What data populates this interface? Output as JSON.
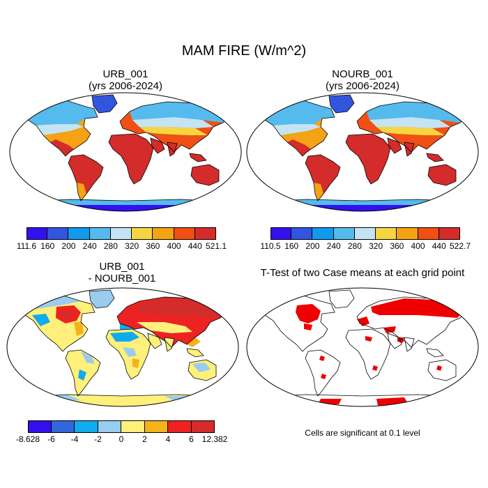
{
  "main_title": "MAM FIRE (W/m^2)",
  "panels": {
    "urb": {
      "title_line1": "URB_001",
      "title_line2": "(yrs 2006-2024)"
    },
    "nourb": {
      "title_line1": "NOURB_001",
      "title_line2": "(yrs 2006-2024)"
    },
    "diff": {
      "title_line1": "URB_001",
      "title_line2": "- NOURB_001"
    },
    "ttest": {
      "title": "T-Test of two Case means at each grid point",
      "note": "Cells are significant at 0.1 level",
      "significant_color": "#ee0000"
    }
  },
  "colorbars": {
    "urb": {
      "labels": [
        "111.6",
        "160",
        "200",
        "240",
        "280",
        "320",
        "360",
        "400",
        "440",
        "521.1"
      ],
      "colors": [
        "#3311ee",
        "#3355dd",
        "#1199ee",
        "#55bbee",
        "#c4e4f4",
        "#f5d642",
        "#f5a214",
        "#f05014",
        "#d42b2b"
      ]
    },
    "nourb": {
      "labels": [
        "110.5",
        "160",
        "200",
        "240",
        "280",
        "320",
        "360",
        "400",
        "440",
        "522.7"
      ],
      "colors": [
        "#3311ee",
        "#3355dd",
        "#1199ee",
        "#55bbee",
        "#c4e4f4",
        "#f5d642",
        "#f5a214",
        "#f05014",
        "#d42b2b"
      ]
    },
    "diff": {
      "labels": [
        "-8.628",
        "-6",
        "-4",
        "-2",
        "0",
        "2",
        "4",
        "6",
        "12.382"
      ],
      "colors": [
        "#3311ee",
        "#3366dd",
        "#11aaee",
        "#99ccee",
        "#fef07a",
        "#f5b21a",
        "#ee2222",
        "#d42b2b"
      ]
    }
  }
}
